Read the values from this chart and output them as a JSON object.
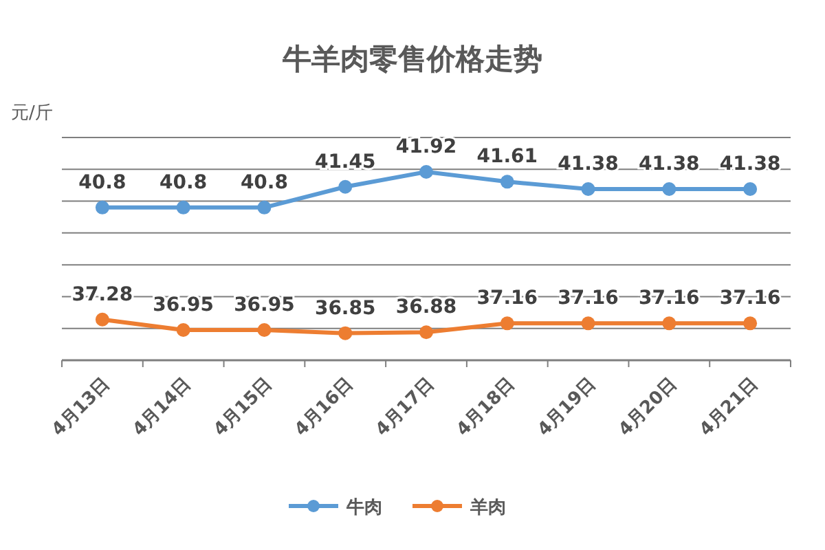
{
  "chart_data": {
    "type": "line",
    "title": "牛羊肉零售价格走势",
    "ylabel": "元/斤",
    "categories": [
      "4月13日",
      "4月14日",
      "4月15日",
      "4月16日",
      "4月17日",
      "4月18日",
      "4月19日",
      "4月20日",
      "4月21日"
    ],
    "series": [
      {
        "name": "牛肉",
        "color": "#5b9bd5",
        "values": [
          40.8,
          40.8,
          40.8,
          41.45,
          41.92,
          41.61,
          41.38,
          41.38,
          41.38
        ]
      },
      {
        "name": "羊肉",
        "color": "#ed7d31",
        "values": [
          37.28,
          36.95,
          36.95,
          36.85,
          36.88,
          37.16,
          37.16,
          37.16,
          37.16
        ]
      }
    ],
    "ylim": [
      36,
      43
    ],
    "yticks": [
      {
        "value": 36,
        "label": null
      },
      {
        "value": 37,
        "label": null
      },
      {
        "value": 38,
        "label": null
      },
      {
        "value": 39,
        "label": null
      },
      {
        "value": 40,
        "label": null
      },
      {
        "value": 41,
        "label": null
      },
      {
        "value": 42,
        "label": null
      },
      {
        "value": 43,
        "label": null
      }
    ],
    "tick_labels": "x",
    "grid": "y",
    "legend": "bottom",
    "marker": "circle",
    "line_style": "solid",
    "data_labels": true
  }
}
